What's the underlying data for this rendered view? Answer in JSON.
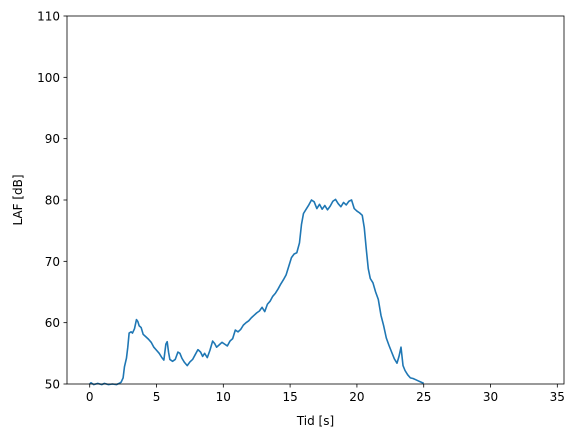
{
  "chart_data": {
    "type": "line",
    "title": "",
    "xlabel": "Tid [s]",
    "ylabel": "LAF [dB]",
    "xlim": [
      -1.7,
      35.5
    ],
    "ylim": [
      50,
      110
    ],
    "xticks": [
      0,
      5,
      10,
      15,
      20,
      25,
      30,
      35
    ],
    "yticks": [
      50,
      60,
      70,
      80,
      90,
      100,
      110
    ],
    "grid": false,
    "legend": "none",
    "series": [
      {
        "color": "#1f77b4",
        "points": [
          [
            0.0,
            50.0
          ],
          [
            0.1,
            50.2
          ],
          [
            0.3,
            49.9
          ],
          [
            0.6,
            50.1
          ],
          [
            0.9,
            49.9
          ],
          [
            1.1,
            50.1
          ],
          [
            1.4,
            49.9
          ],
          [
            1.7,
            50.0
          ],
          [
            2.0,
            49.9
          ],
          [
            2.2,
            50.1
          ],
          [
            2.35,
            50.3
          ],
          [
            2.5,
            51.0
          ],
          [
            2.6,
            52.8
          ],
          [
            2.75,
            54.2
          ],
          [
            2.85,
            56.0
          ],
          [
            2.95,
            58.3
          ],
          [
            3.1,
            58.5
          ],
          [
            3.2,
            58.3
          ],
          [
            3.35,
            59.0
          ],
          [
            3.5,
            60.5
          ],
          [
            3.6,
            60.2
          ],
          [
            3.7,
            59.5
          ],
          [
            3.85,
            59.2
          ],
          [
            4.0,
            58.1
          ],
          [
            4.2,
            57.7
          ],
          [
            4.4,
            57.3
          ],
          [
            4.6,
            56.8
          ],
          [
            4.8,
            56.0
          ],
          [
            5.0,
            55.5
          ],
          [
            5.2,
            55.0
          ],
          [
            5.4,
            54.3
          ],
          [
            5.55,
            53.9
          ],
          [
            5.7,
            56.5
          ],
          [
            5.8,
            56.9
          ],
          [
            5.9,
            55.2
          ],
          [
            6.0,
            54.0
          ],
          [
            6.2,
            53.7
          ],
          [
            6.4,
            54.0
          ],
          [
            6.6,
            55.2
          ],
          [
            6.75,
            55.0
          ],
          [
            6.9,
            54.2
          ],
          [
            7.1,
            53.5
          ],
          [
            7.3,
            53.0
          ],
          [
            7.5,
            53.6
          ],
          [
            7.7,
            54.0
          ],
          [
            7.9,
            54.8
          ],
          [
            8.1,
            55.6
          ],
          [
            8.3,
            55.2
          ],
          [
            8.45,
            54.5
          ],
          [
            8.6,
            55.0
          ],
          [
            8.8,
            54.3
          ],
          [
            9.0,
            55.5
          ],
          [
            9.2,
            57.0
          ],
          [
            9.35,
            56.6
          ],
          [
            9.5,
            56.0
          ],
          [
            9.7,
            56.4
          ],
          [
            9.9,
            56.8
          ],
          [
            10.1,
            56.5
          ],
          [
            10.3,
            56.2
          ],
          [
            10.5,
            57.0
          ],
          [
            10.7,
            57.4
          ],
          [
            10.9,
            58.8
          ],
          [
            11.1,
            58.5
          ],
          [
            11.3,
            58.9
          ],
          [
            11.5,
            59.6
          ],
          [
            11.7,
            60.0
          ],
          [
            11.9,
            60.3
          ],
          [
            12.1,
            60.8
          ],
          [
            12.3,
            61.2
          ],
          [
            12.5,
            61.6
          ],
          [
            12.7,
            61.9
          ],
          [
            12.9,
            62.5
          ],
          [
            13.1,
            61.8
          ],
          [
            13.3,
            63.0
          ],
          [
            13.5,
            63.5
          ],
          [
            13.7,
            64.3
          ],
          [
            13.9,
            64.8
          ],
          [
            14.1,
            65.5
          ],
          [
            14.3,
            66.3
          ],
          [
            14.5,
            67.0
          ],
          [
            14.7,
            67.8
          ],
          [
            14.9,
            69.2
          ],
          [
            15.1,
            70.6
          ],
          [
            15.3,
            71.2
          ],
          [
            15.5,
            71.4
          ],
          [
            15.7,
            73.0
          ],
          [
            15.85,
            76.0
          ],
          [
            16.0,
            77.8
          ],
          [
            16.2,
            78.5
          ],
          [
            16.4,
            79.2
          ],
          [
            16.6,
            80.0
          ],
          [
            16.8,
            79.7
          ],
          [
            17.0,
            78.6
          ],
          [
            17.2,
            79.3
          ],
          [
            17.4,
            78.5
          ],
          [
            17.6,
            79.1
          ],
          [
            17.8,
            78.4
          ],
          [
            18.0,
            79.0
          ],
          [
            18.2,
            79.8
          ],
          [
            18.4,
            80.1
          ],
          [
            18.6,
            79.4
          ],
          [
            18.8,
            78.9
          ],
          [
            19.0,
            79.6
          ],
          [
            19.2,
            79.2
          ],
          [
            19.4,
            79.8
          ],
          [
            19.6,
            80.0
          ],
          [
            19.8,
            78.6
          ],
          [
            20.0,
            78.2
          ],
          [
            20.2,
            77.9
          ],
          [
            20.4,
            77.5
          ],
          [
            20.55,
            75.5
          ],
          [
            20.7,
            72.0
          ],
          [
            20.85,
            68.8
          ],
          [
            21.0,
            67.2
          ],
          [
            21.2,
            66.5
          ],
          [
            21.4,
            65.0
          ],
          [
            21.6,
            63.8
          ],
          [
            21.8,
            61.2
          ],
          [
            22.0,
            59.5
          ],
          [
            22.2,
            57.5
          ],
          [
            22.4,
            56.3
          ],
          [
            22.6,
            55.2
          ],
          [
            22.8,
            54.1
          ],
          [
            23.0,
            53.4
          ],
          [
            23.15,
            54.5
          ],
          [
            23.3,
            56.0
          ],
          [
            23.45,
            53.0
          ],
          [
            23.6,
            52.2
          ],
          [
            23.8,
            51.5
          ],
          [
            24.0,
            51.0
          ],
          [
            24.2,
            50.9
          ],
          [
            24.4,
            50.7
          ],
          [
            24.6,
            50.5
          ],
          [
            24.8,
            50.3
          ],
          [
            25.0,
            50.1
          ]
        ]
      }
    ]
  }
}
